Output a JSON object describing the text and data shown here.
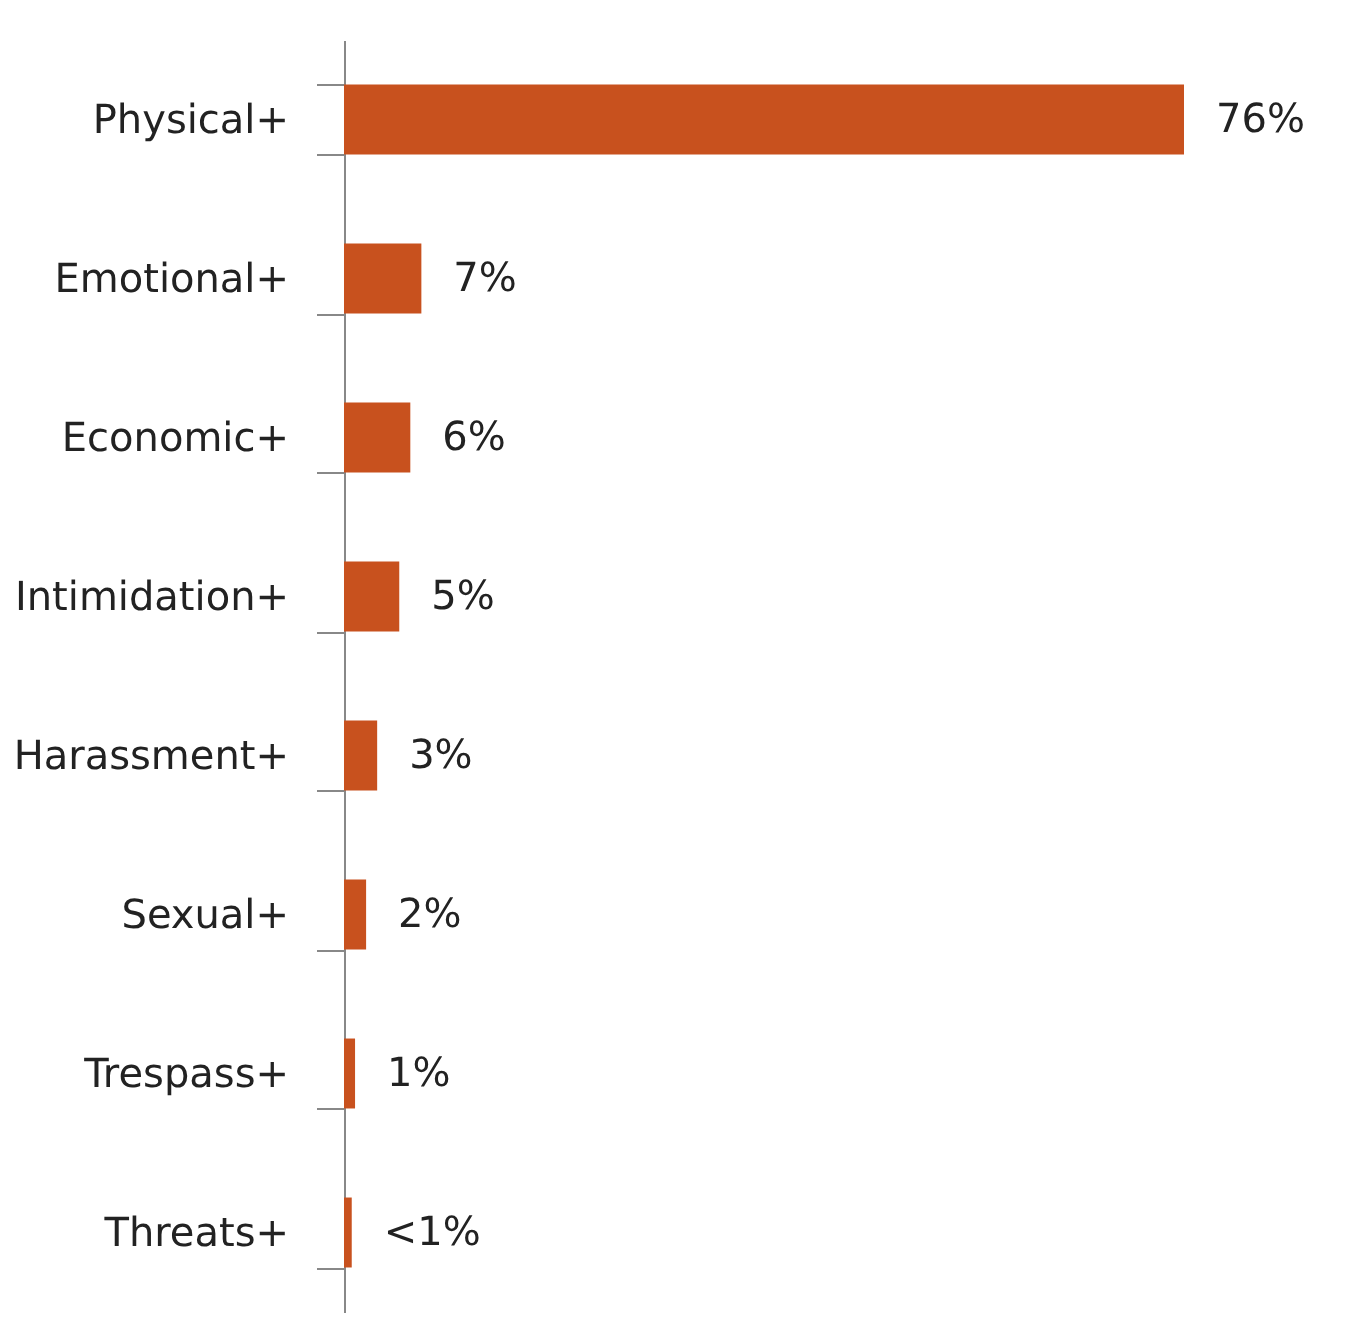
{
  "chart_data": {
    "type": "bar",
    "orientation": "horizontal",
    "categories": [
      "Physical+",
      "Emotional+",
      "Economic+",
      "Intimidation+",
      "Harassment+",
      "Sexual+",
      "Trespass+",
      "Threats+"
    ],
    "values": [
      76,
      7,
      6,
      5,
      3,
      2,
      1,
      0.7
    ],
    "value_labels": [
      "76%",
      "7%",
      "6%",
      "5%",
      "3%",
      "2%",
      "1%",
      "<1%"
    ],
    "color": "#c8511e"
  }
}
